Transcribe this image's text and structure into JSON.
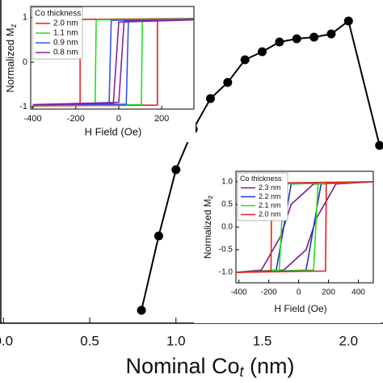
{
  "chart_data": [
    {
      "type": "line",
      "markers": true,
      "color": "#000000",
      "x_label": "Nominal Co",
      "x_label_sub": "t",
      "x_label_unit": " (nm)",
      "x": [
        0.8,
        0.9,
        1.0,
        1.1,
        1.2,
        1.3,
        1.4,
        1.5,
        1.6,
        1.7,
        1.8,
        1.9,
        2.0,
        2.18
      ],
      "values": [
        4,
        27,
        47.5,
        60,
        69.5,
        74.5,
        81.5,
        84,
        87,
        88,
        88.5,
        89.5,
        93.5,
        55
      ],
      "xlim": [
        -0.02,
        2.2
      ],
      "ylim": [
        0,
        100
      ],
      "xticks": [
        {
          "value": 0.0,
          "label": "0.0"
        },
        0.5,
        {
          "value": 1.0,
          "label": "1.0"
        },
        1.5,
        {
          "value": 2.0,
          "label": "2.0"
        }
      ]
    },
    {
      "type": "line",
      "markers": false,
      "legend_title": "Co thickness",
      "x_label": "H Field (Oe)",
      "y_label": "Normalized M",
      "y_label_sub": "z",
      "xlim": [
        -410,
        350
      ],
      "ylim": [
        -1.05,
        1.25
      ],
      "xticks": [
        -400,
        -200,
        0,
        200
      ],
      "yticks": [
        -1,
        0,
        1
      ],
      "series": [
        {
          "name": "2.0 nm",
          "color": "#e8201c",
          "x": [
            -400,
            180,
            180,
            350,
            -180,
            -180,
            -400
          ],
          "values": [
            -0.98,
            -0.96,
            0.96,
            0.98,
            0.96,
            -0.96,
            -0.98
          ]
        },
        {
          "name": "1.1 nm",
          "color": "#22dd22",
          "x": [
            -400,
            105,
            110,
            350,
            -105,
            -110,
            -400
          ],
          "values": [
            -0.97,
            -0.95,
            0.95,
            0.97,
            0.95,
            -0.95,
            -0.97
          ]
        },
        {
          "name": "0.9 nm",
          "color": "#3355ee",
          "x": [
            -400,
            35,
            45,
            350,
            -35,
            -45,
            -400
          ],
          "values": [
            -0.96,
            -0.94,
            0.94,
            0.96,
            0.94,
            -0.94,
            -0.96
          ]
        },
        {
          "name": "0.8 nm",
          "color": "#882299",
          "x": [
            -400,
            0,
            25,
            350,
            0,
            -25,
            -400
          ],
          "values": [
            -0.95,
            -0.9,
            0.92,
            0.95,
            0.9,
            -0.92,
            -0.95
          ]
        }
      ]
    },
    {
      "type": "line",
      "markers": false,
      "legend_title": "Co thickness",
      "x_label": "H Field (Oe)",
      "y_label": "Normalized M",
      "y_label_sub": "z",
      "xlim": [
        -420,
        500
      ],
      "ylim": [
        -1.23,
        1.23
      ],
      "xticks": [
        -400,
        -200,
        0,
        200,
        400
      ],
      "yticks": [
        {
          "value": -1.0,
          "label": "-1.0"
        },
        -0.5,
        {
          "value": 0.0,
          "label": "0.0"
        },
        0.5,
        {
          "value": 1.0,
          "label": "1.0"
        }
      ],
      "series": [
        {
          "name": "2.3 nm",
          "color": "#7a1a8a",
          "x": [
            -420,
            -100,
            50,
            120,
            250,
            500,
            100,
            -50,
            -120,
            -250,
            -420
          ],
          "values": [
            -1,
            -0.95,
            -0.5,
            0.2,
            0.95,
            1,
            0.95,
            0.5,
            -0.2,
            -0.95,
            -1
          ]
        },
        {
          "name": "2.2 nm",
          "color": "#2233cc",
          "x": [
            -420,
            50,
            100,
            150,
            500,
            -50,
            -100,
            -150,
            -420
          ],
          "values": [
            -1,
            -0.95,
            0,
            0.95,
            1,
            0.95,
            0,
            -0.95,
            -1
          ]
        },
        {
          "name": "2.1 nm",
          "color": "#22dd22",
          "x": [
            -420,
            100,
            130,
            500,
            -100,
            -130,
            -420
          ],
          "values": [
            -1,
            -0.95,
            0.95,
            1,
            0.95,
            -0.95,
            -1
          ]
        },
        {
          "name": "2.0 nm",
          "color": "#e8201c",
          "x": [
            -420,
            180,
            185,
            500,
            -180,
            -185,
            -420
          ],
          "values": [
            -1,
            -0.97,
            0.97,
            1,
            0.97,
            -0.97,
            -1
          ]
        }
      ]
    }
  ]
}
